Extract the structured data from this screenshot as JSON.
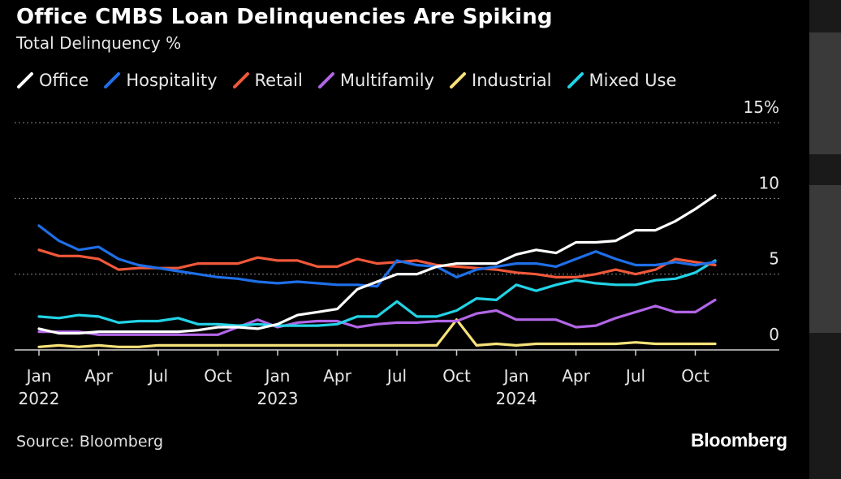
{
  "title": "Office CMBS Loan Delinquencies Are Spiking",
  "subtitle": "Total Delinquency %",
  "source": "Source: Bloomberg",
  "brand": "Bloomberg",
  "colors": {
    "background": "#000000",
    "grid": "#8a8a8a"
  },
  "legend": [
    {
      "name": "Office",
      "color": "#ffffff"
    },
    {
      "name": "Hospitality",
      "color": "#1f6fe8"
    },
    {
      "name": "Retail",
      "color": "#f0583a"
    },
    {
      "name": "Multifamily",
      "color": "#b266e6"
    },
    {
      "name": "Industrial",
      "color": "#f7e27a"
    },
    {
      "name": "Mixed Use",
      "color": "#22d3e6"
    }
  ],
  "chart_data": {
    "type": "line",
    "title": "Office CMBS Loan Delinquencies Are Spiking",
    "subtitle": "Total Delinquency %",
    "x_start": "2022-01",
    "x": [
      "2022-01",
      "2022-02",
      "2022-03",
      "2022-04",
      "2022-05",
      "2022-06",
      "2022-07",
      "2022-08",
      "2022-09",
      "2022-10",
      "2022-11",
      "2022-12",
      "2023-01",
      "2023-02",
      "2023-03",
      "2023-04",
      "2023-05",
      "2023-06",
      "2023-07",
      "2023-08",
      "2023-09",
      "2023-10",
      "2023-11",
      "2023-12",
      "2024-01",
      "2024-02",
      "2024-03",
      "2024-04",
      "2024-05",
      "2024-06",
      "2024-07",
      "2024-08",
      "2024-09",
      "2024-10",
      "2024-11"
    ],
    "x_ticks": [
      {
        "month": "Jan",
        "year": "2022",
        "index": 0
      },
      {
        "month": "Apr",
        "year": "",
        "index": 3
      },
      {
        "month": "Jul",
        "year": "",
        "index": 6
      },
      {
        "month": "Oct",
        "year": "",
        "index": 9
      },
      {
        "month": "Jan",
        "year": "2023",
        "index": 12
      },
      {
        "month": "Apr",
        "year": "",
        "index": 15
      },
      {
        "month": "Jul",
        "year": "",
        "index": 18
      },
      {
        "month": "Oct",
        "year": "",
        "index": 21
      },
      {
        "month": "Jan",
        "year": "2024",
        "index": 24
      },
      {
        "month": "Apr",
        "year": "",
        "index": 27
      },
      {
        "month": "Jul",
        "year": "",
        "index": 30
      },
      {
        "month": "Oct",
        "year": "",
        "index": 33
      }
    ],
    "y_ticks": [
      {
        "value": 0,
        "label": "0"
      },
      {
        "value": 5,
        "label": "5"
      },
      {
        "value": 10,
        "label": "10"
      },
      {
        "value": 15,
        "label": "15%"
      }
    ],
    "ylim": [
      0,
      15
    ],
    "grid": "horizontal dotted",
    "legend_position": "top",
    "series": [
      {
        "name": "Office",
        "color": "#ffffff",
        "values": [
          1.4,
          1.1,
          1.1,
          1.2,
          1.2,
          1.2,
          1.2,
          1.2,
          1.3,
          1.5,
          1.5,
          1.4,
          1.7,
          2.3,
          2.5,
          2.7,
          4.0,
          4.5,
          5.0,
          5.0,
          5.5,
          5.7,
          5.7,
          5.7,
          6.3,
          6.6,
          6.4,
          7.1,
          7.1,
          7.2,
          7.9,
          7.9,
          8.5,
          9.3,
          10.2
        ]
      },
      {
        "name": "Hospitality",
        "color": "#1f6fe8",
        "values": [
          8.2,
          7.2,
          6.6,
          6.8,
          6.0,
          5.6,
          5.4,
          5.2,
          5.0,
          4.8,
          4.7,
          4.5,
          4.4,
          4.5,
          4.4,
          4.3,
          4.3,
          4.2,
          5.9,
          5.6,
          5.5,
          4.8,
          5.3,
          5.5,
          5.7,
          5.7,
          5.5,
          6.0,
          6.5,
          6.0,
          5.6,
          5.6,
          5.8,
          5.6,
          5.8
        ]
      },
      {
        "name": "Retail",
        "color": "#f0583a",
        "values": [
          6.6,
          6.2,
          6.2,
          6.0,
          5.3,
          5.4,
          5.4,
          5.4,
          5.7,
          5.7,
          5.7,
          6.1,
          5.9,
          5.9,
          5.5,
          5.5,
          6.0,
          5.7,
          5.8,
          5.9,
          5.6,
          5.5,
          5.4,
          5.3,
          5.1,
          5.0,
          4.8,
          4.8,
          5.0,
          5.3,
          5.0,
          5.3,
          6.0,
          5.8,
          5.6
        ]
      },
      {
        "name": "Multifamily",
        "color": "#b266e6",
        "values": [
          1.2,
          1.2,
          1.2,
          1.0,
          1.0,
          1.0,
          1.0,
          1.0,
          1.0,
          1.0,
          1.5,
          2.0,
          1.5,
          1.8,
          1.9,
          1.9,
          1.5,
          1.7,
          1.8,
          1.8,
          1.9,
          1.9,
          2.4,
          2.6,
          2.0,
          2.0,
          2.0,
          1.5,
          1.6,
          2.1,
          2.5,
          2.9,
          2.5,
          2.5,
          3.3
        ]
      },
      {
        "name": "Industrial",
        "color": "#f7e27a",
        "values": [
          0.2,
          0.3,
          0.2,
          0.3,
          0.2,
          0.2,
          0.3,
          0.3,
          0.3,
          0.3,
          0.3,
          0.3,
          0.3,
          0.3,
          0.3,
          0.3,
          0.3,
          0.3,
          0.3,
          0.3,
          0.3,
          2.0,
          0.3,
          0.4,
          0.3,
          0.4,
          0.4,
          0.4,
          0.4,
          0.4,
          0.5,
          0.4,
          0.4,
          0.4,
          0.4
        ]
      },
      {
        "name": "Mixed Use",
        "color": "#22d3e6",
        "values": [
          2.2,
          2.1,
          2.3,
          2.2,
          1.8,
          1.9,
          1.9,
          2.1,
          1.7,
          1.7,
          1.6,
          1.7,
          1.6,
          1.6,
          1.6,
          1.7,
          2.2,
          2.2,
          3.2,
          2.2,
          2.2,
          2.6,
          3.4,
          3.3,
          4.3,
          3.9,
          4.3,
          4.6,
          4.4,
          4.3,
          4.3,
          4.6,
          4.7,
          5.1,
          5.9
        ]
      }
    ]
  }
}
